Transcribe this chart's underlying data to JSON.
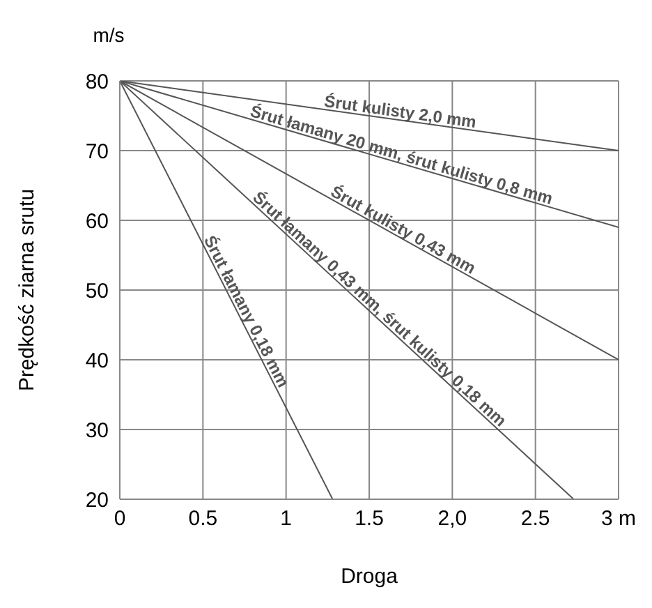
{
  "chart_data": {
    "type": "line",
    "xlabel": "Droga",
    "ylabel": "Prędkość ziarna srutu",
    "annotations": [
      "m/s"
    ],
    "xlim": [
      0,
      3
    ],
    "ylim": [
      20,
      80
    ],
    "xticks": [
      0,
      0.5,
      1,
      1.5,
      {
        "value": 2,
        "label": "2,0"
      },
      2.5,
      {
        "value": 3,
        "label": "3 m"
      }
    ],
    "yticks": [
      20,
      30,
      40,
      50,
      60,
      70,
      80
    ],
    "grid": true,
    "marker": "none",
    "line_style": "solid",
    "series": [
      {
        "name": "Śrut kulisty 2,0 mm",
        "color": "#555555",
        "x": [
          0,
          3
        ],
        "values": [
          80,
          70
        ]
      },
      {
        "name": "Śrut łamany 20 mm, śrut kulisty 0,8 mm",
        "color": "#555555",
        "x": [
          0,
          3
        ],
        "values": [
          80,
          59
        ]
      },
      {
        "name": "Śrut kulisty 0,43 mm",
        "color": "#555555",
        "x": [
          0,
          3
        ],
        "values": [
          80,
          40
        ]
      },
      {
        "name": "Śrut łamany 0,43 mm, śrut kulisty 0,18 mm",
        "color": "#555555",
        "x": [
          0,
          2.73
        ],
        "values": [
          80,
          20
        ]
      },
      {
        "name": "Śrut łamany 0,18 mm",
        "color": "#555555",
        "x": [
          0,
          1.28
        ],
        "values": [
          80,
          20
        ]
      }
    ]
  }
}
